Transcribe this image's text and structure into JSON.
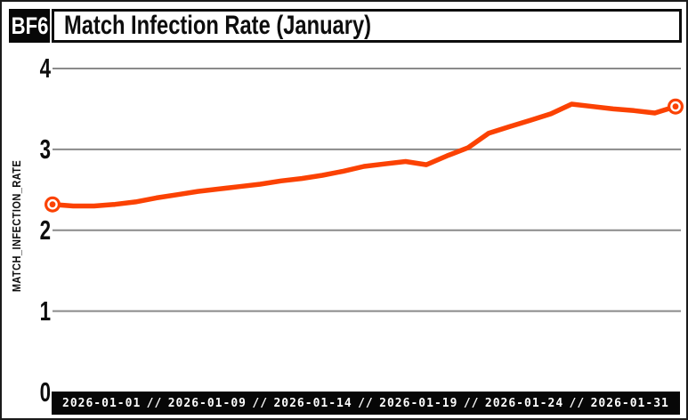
{
  "header": {
    "badge": "BF6",
    "title": "Match Infection Rate (January)"
  },
  "y_axis": {
    "label": "MATCH_INFECTION_RATE",
    "ticks": [
      "4",
      "3",
      "2",
      "1",
      "0"
    ]
  },
  "x_axis": {
    "separator": "//",
    "labels": [
      "2026-01-01",
      "2026-01-09",
      "2026-01-14",
      "2026-01-19",
      "2026-01-24",
      "2026-01-31"
    ]
  },
  "chart_data": {
    "type": "line",
    "title": "Match Infection Rate (January)",
    "xlabel": "",
    "ylabel": "MATCH_INFECTION_RATE",
    "ylim": [
      0,
      4
    ],
    "yticks": [
      0,
      1,
      2,
      3,
      4
    ],
    "gridline_values": [
      1,
      2,
      3,
      4
    ],
    "grid": "horizontal",
    "legend": "none",
    "line_color": "#fb4203",
    "grid_color": "#8a8a8a",
    "axis_bar_color": "#070707",
    "marker": "ring-dot-at-endpoints",
    "x_tick_labels": [
      "2026-01-01",
      "2026-01-09",
      "2026-01-14",
      "2026-01-19",
      "2026-01-24",
      "2026-01-31"
    ],
    "series": [
      {
        "name": "match_infection_rate",
        "x": [
          "2026-01-01",
          "2026-01-02",
          "2026-01-03",
          "2026-01-04",
          "2026-01-05",
          "2026-01-06",
          "2026-01-07",
          "2026-01-08",
          "2026-01-09",
          "2026-01-10",
          "2026-01-11",
          "2026-01-12",
          "2026-01-13",
          "2026-01-14",
          "2026-01-15",
          "2026-01-16",
          "2026-01-17",
          "2026-01-18",
          "2026-01-19",
          "2026-01-20",
          "2026-01-21",
          "2026-01-22",
          "2026-01-23",
          "2026-01-24",
          "2026-01-25",
          "2026-01-26",
          "2026-01-27",
          "2026-01-28",
          "2026-01-29",
          "2026-01-30",
          "2026-01-31"
        ],
        "values": [
          2.32,
          2.3,
          2.3,
          2.32,
          2.35,
          2.4,
          2.44,
          2.48,
          2.51,
          2.54,
          2.57,
          2.61,
          2.64,
          2.68,
          2.73,
          2.79,
          2.82,
          2.85,
          2.81,
          2.92,
          3.02,
          3.2,
          3.28,
          3.36,
          3.44,
          3.56,
          3.53,
          3.5,
          3.48,
          3.45,
          3.53
        ]
      }
    ]
  }
}
